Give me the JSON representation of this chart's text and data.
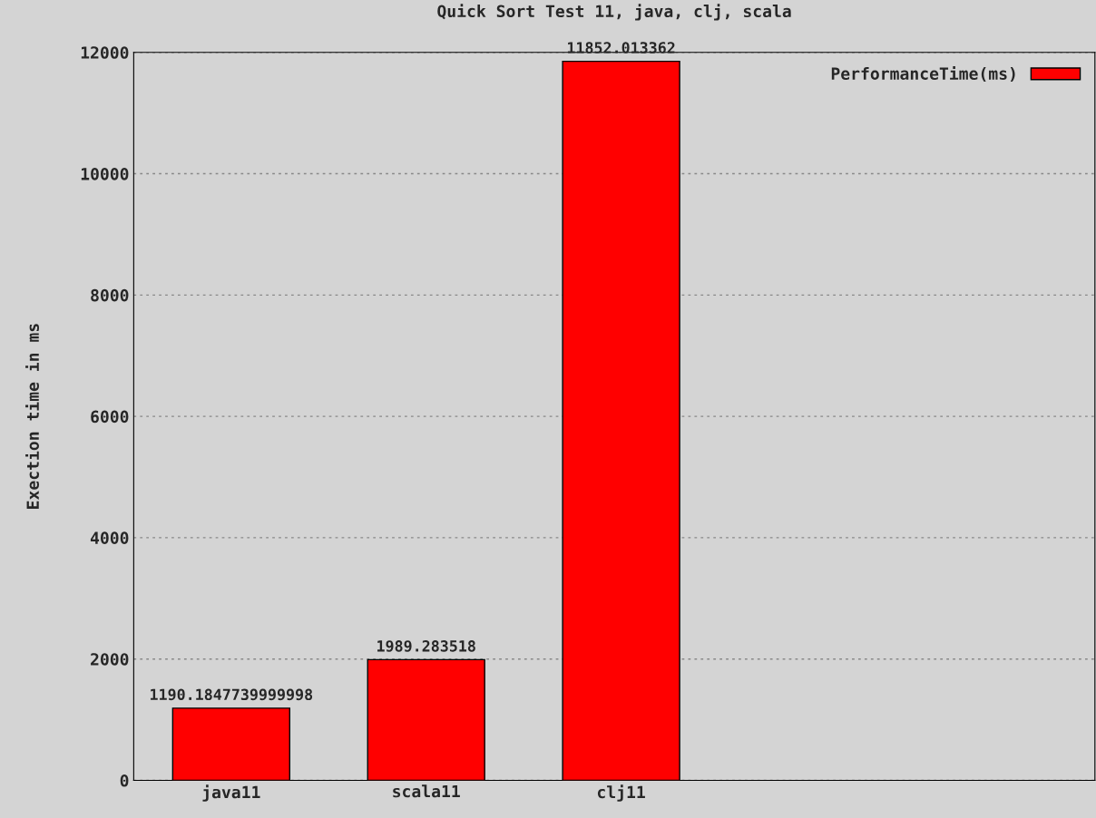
{
  "chart_data": {
    "type": "bar",
    "title": "Quick Sort Test 11, java, clj, scala",
    "ylabel": "Exection time in ms",
    "categories": [
      "java11",
      "scala11",
      "clj11"
    ],
    "series": [
      {
        "name": "PerformanceTime(ms)",
        "color": "#ff0000",
        "values": [
          1190.1847739999998,
          1989.283518,
          11852.013362
        ]
      }
    ],
    "ylim": [
      0,
      12000
    ],
    "yticks": [
      0,
      2000,
      4000,
      6000,
      8000,
      10000,
      12000
    ],
    "grid": "y",
    "legend": "top right",
    "data_labels": true
  }
}
